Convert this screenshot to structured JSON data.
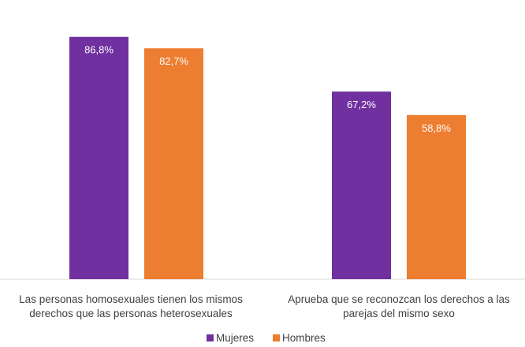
{
  "chart_data": {
    "type": "bar",
    "categories": [
      [
        "Las personas homosexuales tienen los mismos",
        "derechos que las personas heterosexuales"
      ],
      [
        "Aprueba que se reconozcan los derechos a las",
        "parejas del mismo sexo"
      ]
    ],
    "series": [
      {
        "name": "Mujeres",
        "values": [
          86.8,
          67.2
        ],
        "labels": [
          "86,8%",
          "67,2%"
        ],
        "color": "#7030A0"
      },
      {
        "name": "Hombres",
        "values": [
          82.7,
          58.8
        ],
        "labels": [
          "82,7%",
          "58,8%"
        ],
        "color": "#ED7D31"
      }
    ],
    "ylim": [
      0,
      100
    ],
    "grid": false,
    "legend_position": "bottom",
    "axis_color": "#D9D9D9",
    "label_color": "#404040"
  }
}
